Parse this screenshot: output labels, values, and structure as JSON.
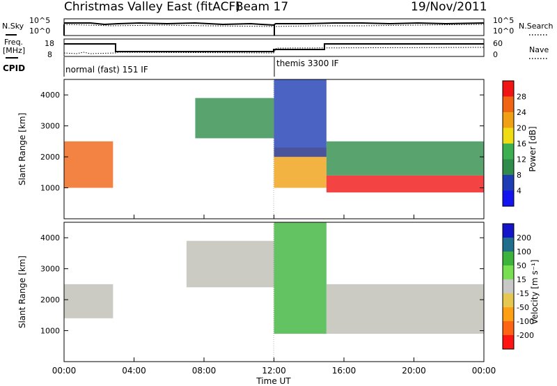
{
  "header": {
    "station": "Christmas Valley East (fitACF)",
    "beam": "Beam 17",
    "date": "19/Nov/2011"
  },
  "top_panel": {
    "left_label": "N.Sky",
    "left_ticks": [
      "10^5",
      "10^0"
    ],
    "right_ticks": [
      "10^5",
      "10^0"
    ],
    "right_label": "N.Search"
  },
  "freq_panel": {
    "left_label_1": "Freq.",
    "left_label_2": "[MHz]",
    "left_ticks": [
      "18",
      "8"
    ],
    "right_ticks": [
      "60",
      "0"
    ],
    "right_label": "Nave"
  },
  "cpid_panel": {
    "label": "CPID",
    "mode_1": "normal (fast) 151 IF",
    "mode_2": "themis 3300 IF"
  },
  "colors": {
    "power_scale": [
      "#1414f0",
      "#1e3cb4",
      "#2f8c4a",
      "#3cb050",
      "#f0dc14",
      "#f0a014",
      "#f06414",
      "#f01414"
    ],
    "velocity_scale": [
      "#ff1414",
      "#ff6414",
      "#ffa014",
      "#e6c850",
      "#c8c8c8",
      "#78e050",
      "#3cb43c",
      "#1e6e8c",
      "#1414c8"
    ],
    "ground_scatter": "#bebeb4"
  },
  "chart_data": [
    {
      "type": "heatmap",
      "title": "Power",
      "ylabel": "Slant Range [km]",
      "xlabel": "",
      "ylim": [
        0,
        4500
      ],
      "xlim_hours": [
        0,
        24
      ],
      "y_ticks": [
        "4000",
        "3000",
        "2000",
        "1000"
      ],
      "colorbar_label": "Power [dB]",
      "colorbar_ticks": [
        "28",
        "24",
        "20",
        "16",
        "12",
        "8",
        "4"
      ],
      "features": [
        {
          "t_start": 0,
          "t_end": 2.8,
          "range_low": 1000,
          "range_high": 2500,
          "level_db": 24
        },
        {
          "t_start": 7.5,
          "t_end": 12.0,
          "range_low": 2600,
          "range_high": 3900,
          "level_db": 10
        },
        {
          "t_start": 12.0,
          "t_end": 15.0,
          "range_low": 1000,
          "range_high": 2300,
          "level_db": 22
        },
        {
          "t_start": 12.0,
          "t_end": 15.0,
          "range_low": 2000,
          "range_high": 4500,
          "level_db": 6
        },
        {
          "t_start": 15.0,
          "t_end": 24.0,
          "range_low": 850,
          "range_high": 1400,
          "level_db": 27
        },
        {
          "t_start": 15.0,
          "t_end": 24.0,
          "range_low": 1400,
          "range_high": 2500,
          "level_db": 12
        }
      ]
    },
    {
      "type": "heatmap",
      "title": "Velocity",
      "ylabel": "Slant Range [km]",
      "xlabel": "Time UT",
      "ylim": [
        0,
        4500
      ],
      "xlim_hours": [
        0,
        24
      ],
      "y_ticks": [
        "4000",
        "3000",
        "2000",
        "1000"
      ],
      "x_ticks": [
        "00:00",
        "04:00",
        "08:00",
        "12:00",
        "16:00",
        "20:00",
        "00:00"
      ],
      "colorbar_label": "Velocity [m s⁻¹]",
      "colorbar_ticks": [
        "200",
        "100",
        "50",
        "15",
        "-15",
        "-50",
        "-100",
        "-200"
      ],
      "features": [
        {
          "t_start": 0,
          "t_end": 2.8,
          "range_low": 1400,
          "range_high": 2500,
          "velocity": 0
        },
        {
          "t_start": 7.0,
          "t_end": 12.0,
          "range_low": 2400,
          "range_high": 3900,
          "velocity": 0
        },
        {
          "t_start": 12.0,
          "t_end": 15.0,
          "range_low": 900,
          "range_high": 4500,
          "velocity": 60
        },
        {
          "t_start": 15.0,
          "t_end": 24.0,
          "range_low": 900,
          "range_high": 2500,
          "velocity": 0
        }
      ]
    }
  ]
}
